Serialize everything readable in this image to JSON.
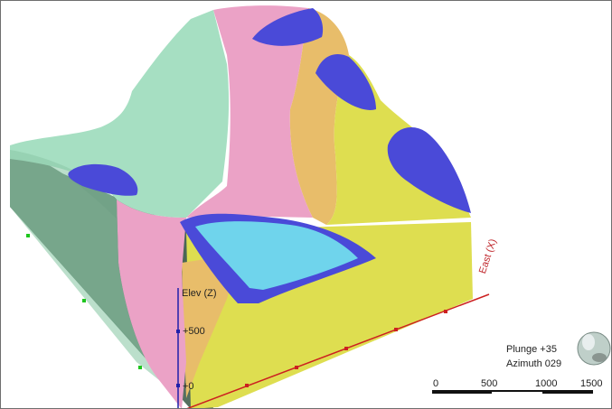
{
  "axes": {
    "elevation_label": "Elev (Z)",
    "elevation_ticks": [
      "+500",
      "+0"
    ],
    "east_label": "East (X)"
  },
  "orientation": {
    "plunge": "Plunge +35",
    "azimuth": "Azimuth 029"
  },
  "scale_bar": {
    "labels": [
      "0",
      "500",
      "1000",
      "1500"
    ]
  },
  "colors": {
    "green_unit": "#a6dfc2",
    "pink_unit": "#eba2c6",
    "orange_unit": "#e8bd6a",
    "yellow_unit": "#dede50",
    "blue_unit": "#4a4ad8",
    "cyan_unit": "#6fd4ec",
    "block_side": "#4a6656",
    "east_axis": "#cc2020",
    "elev_axis": "#2020aa"
  }
}
